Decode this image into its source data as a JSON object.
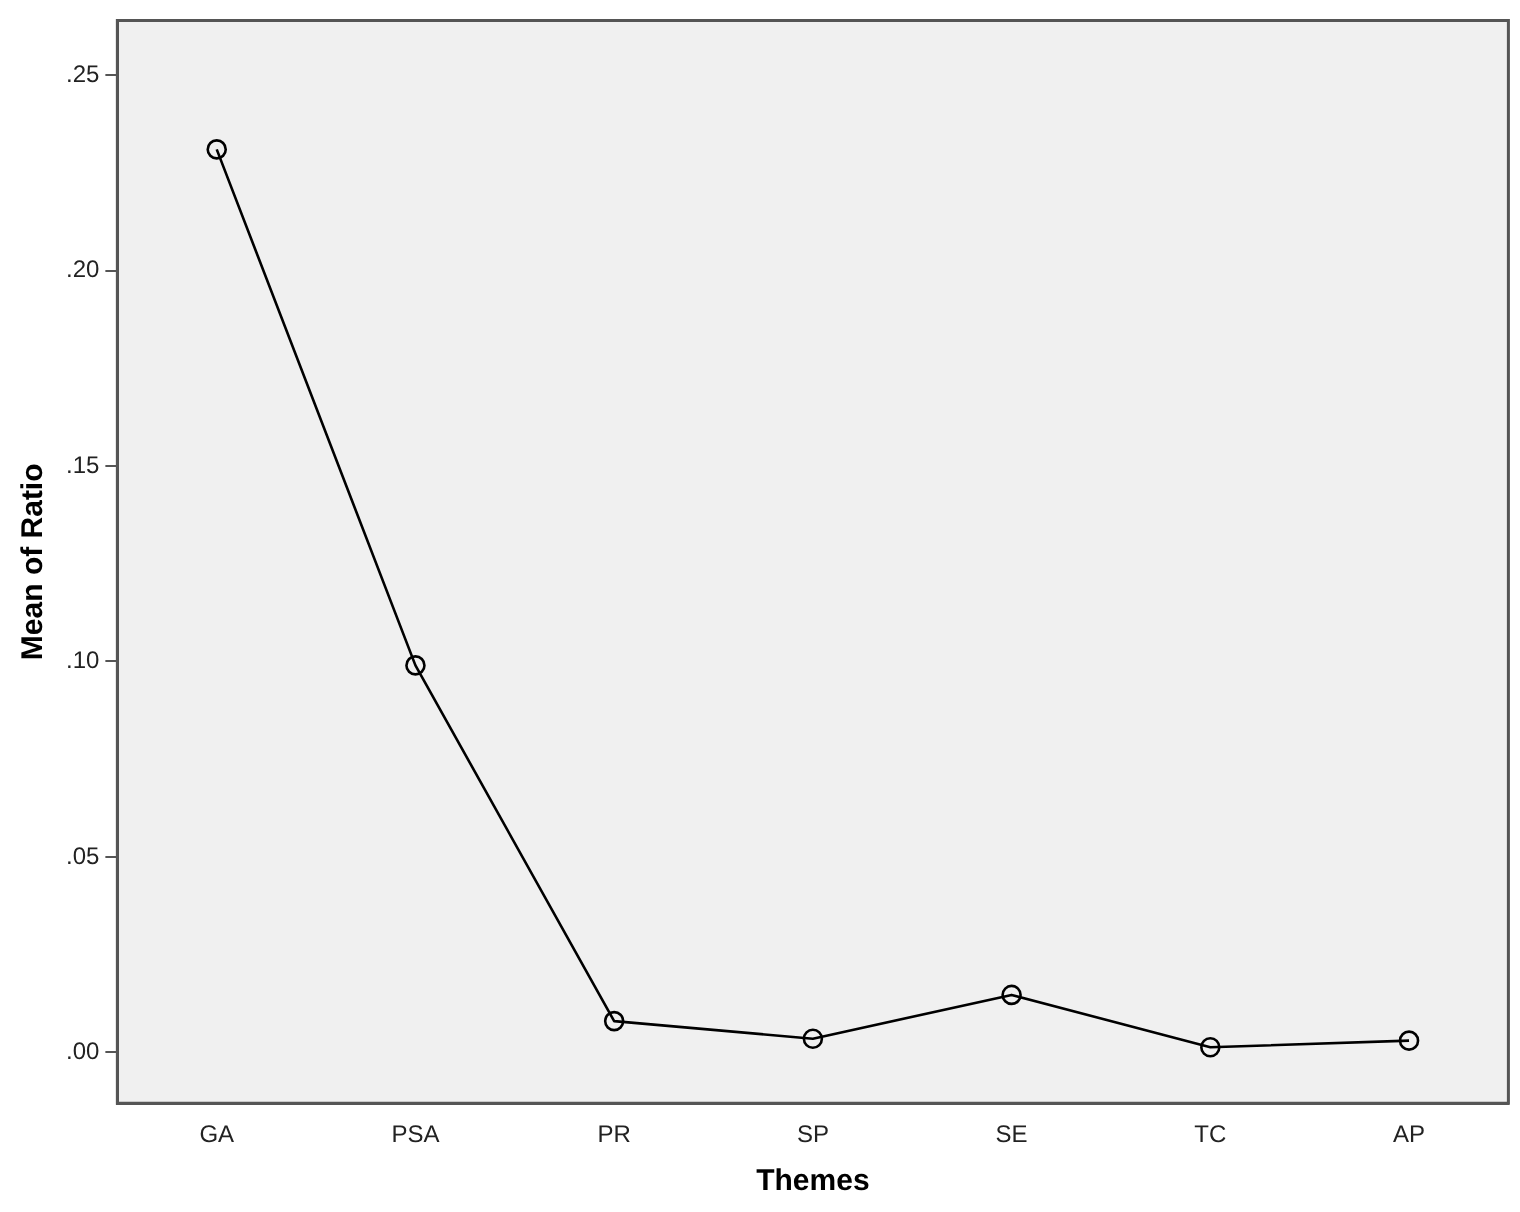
{
  "chart_data": {
    "type": "line",
    "xlabel": "Themes",
    "ylabel": "Mean of Ratio",
    "categories": [
      "GA",
      "PSA",
      "PR",
      "SP",
      "SE",
      "TC",
      "AP"
    ],
    "series": [
      {
        "color": "#000000",
        "values": [
          0.231,
          0.099,
          0.008,
          0.0035,
          0.0147,
          0.0013,
          0.003
        ]
      }
    ],
    "ylim": [
      -0.013,
      0.264
    ],
    "yticks": [
      {
        "value": 0,
        "label": ".00"
      },
      {
        "value": 0.05,
        "label": ".05"
      },
      {
        "value": 0.1,
        "label": ".10"
      },
      {
        "value": 0.15,
        "label": ".15"
      },
      {
        "value": 0.2,
        "label": ".20"
      },
      {
        "value": 0.25,
        "label": ".25"
      }
    ],
    "grid": false,
    "legend": false,
    "marker": "circle",
    "line_style": "solid"
  }
}
